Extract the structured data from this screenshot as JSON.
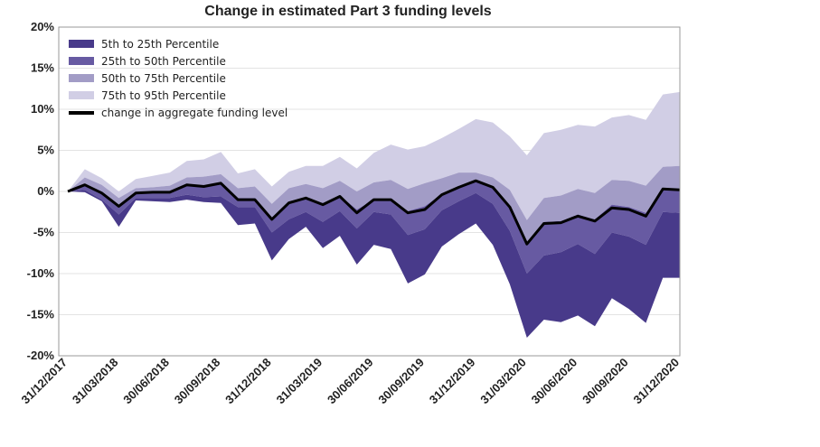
{
  "chart_data": {
    "type": "area",
    "title": "Change in estimated Part 3 funding levels",
    "xlabel": "",
    "ylabel": "",
    "ylim": [
      -20,
      20
    ],
    "y_ticks": [
      "20%",
      "15%",
      "10%",
      "5%",
      "0%",
      "-5%",
      "-10%",
      "-15%",
      "-20%"
    ],
    "x_tick_labels": [
      "31/12/2017",
      "31/03/2018",
      "30/06/2018",
      "30/09/2018",
      "31/12/2018",
      "31/03/2019",
      "30/06/2019",
      "30/09/2019",
      "31/12/2019",
      "31/03/2020",
      "30/06/2020",
      "30/09/2020",
      "31/12/2020"
    ],
    "x_tick_index": [
      0,
      3,
      6,
      9,
      12,
      15,
      18,
      21,
      24,
      27,
      30,
      33,
      36
    ],
    "grid": true,
    "legend_position": "top-left",
    "colors": {
      "p5_25": "#483a8a",
      "p25_50": "#675aa2",
      "p50_75": "#a29cc6",
      "p75_95": "#d1cee5",
      "line": "#000000",
      "grid": "#e3e3e3",
      "axis": "#999999"
    },
    "legend": [
      {
        "label": "5th to 25th Percentile",
        "key": "p5_25"
      },
      {
        "label": "25th to 50th Percentile",
        "key": "p25_50"
      },
      {
        "label": "50th to 75th Percentile",
        "key": "p50_75"
      },
      {
        "label": "75th to 95th Percentile",
        "key": "p75_95"
      },
      {
        "label": "change in aggregate funding level",
        "key": "line"
      }
    ],
    "series": [
      {
        "name": "5th percentile",
        "values": [
          0,
          -0.1,
          -1.2,
          -4.3,
          -1.1,
          -1.2,
          -1.3,
          -1.0,
          -1.3,
          -1.4,
          -4.1,
          -3.9,
          -8.4,
          -5.8,
          -4.3,
          -6.9,
          -5.4,
          -8.9,
          -6.5,
          -7.0,
          -11.2,
          -10.1,
          -6.7,
          -5.2,
          -3.9,
          -6.5,
          -11.3,
          -17.8,
          -15.6,
          -15.9,
          -15.1,
          -16.4,
          -13.0,
          -14.3,
          -16.0,
          -10.5,
          -10.5
        ]
      },
      {
        "name": "25th percentile",
        "values": [
          0,
          0.2,
          -1.0,
          -2.8,
          -0.8,
          -0.8,
          -0.8,
          -0.4,
          -0.7,
          -0.6,
          -1.9,
          -1.9,
          -5.0,
          -3.4,
          -2.5,
          -3.7,
          -2.4,
          -4.5,
          -2.5,
          -2.8,
          -5.3,
          -4.6,
          -2.3,
          -1.2,
          -0.2,
          -1.5,
          -4.8,
          -10.0,
          -7.8,
          -7.4,
          -6.4,
          -7.6,
          -5.0,
          -5.5,
          -6.5,
          -2.5,
          -2.6
        ]
      },
      {
        "name": "50th percentile",
        "values": [
          0,
          0.9,
          0.0,
          -1.7,
          -0.2,
          -0.2,
          -0.1,
          0.8,
          0.6,
          1.0,
          -0.8,
          -0.8,
          -3.3,
          -1.2,
          -0.7,
          -1.4,
          -0.5,
          -2.2,
          -1.0,
          -0.9,
          -2.4,
          -1.8,
          -0.3,
          0.4,
          1.3,
          0.5,
          -1.8,
          -6.5,
          -3.7,
          -3.6,
          -2.8,
          -3.4,
          -1.6,
          -1.9,
          -2.6,
          0.2,
          0.3
        ]
      },
      {
        "name": "75th percentile",
        "values": [
          0,
          1.7,
          0.8,
          -0.8,
          0.4,
          0.5,
          0.7,
          1.7,
          1.8,
          2.1,
          0.4,
          0.6,
          -1.5,
          0.4,
          0.9,
          0.4,
          1.3,
          0.0,
          1.1,
          1.4,
          0.3,
          1.0,
          1.6,
          2.3,
          2.3,
          1.7,
          0.2,
          -3.5,
          -0.8,
          -0.5,
          0.3,
          -0.2,
          1.4,
          1.3,
          0.7,
          3.0,
          3.1
        ]
      },
      {
        "name": "95th percentile",
        "values": [
          0,
          2.7,
          1.6,
          0.0,
          1.5,
          1.9,
          2.3,
          3.7,
          3.9,
          4.8,
          2.2,
          2.7,
          0.6,
          2.4,
          3.1,
          3.1,
          4.2,
          2.8,
          4.7,
          5.7,
          5.1,
          5.5,
          6.5,
          7.6,
          8.8,
          8.4,
          6.7,
          4.4,
          7.1,
          7.5,
          8.1,
          7.9,
          9.0,
          9.3,
          8.7,
          11.8,
          12.1
        ]
      },
      {
        "name": "change in aggregate funding level",
        "values": [
          0,
          0.8,
          -0.2,
          -1.8,
          -0.2,
          -0.1,
          -0.1,
          0.8,
          0.6,
          1.0,
          -1.0,
          -1.0,
          -3.4,
          -1.4,
          -0.8,
          -1.6,
          -0.6,
          -2.6,
          -1.0,
          -1.0,
          -2.6,
          -2.2,
          -0.4,
          0.5,
          1.3,
          0.5,
          -1.9,
          -6.4,
          -3.9,
          -3.8,
          -3.0,
          -3.6,
          -2.0,
          -2.2,
          -3.0,
          0.3,
          0.2
        ]
      }
    ]
  }
}
